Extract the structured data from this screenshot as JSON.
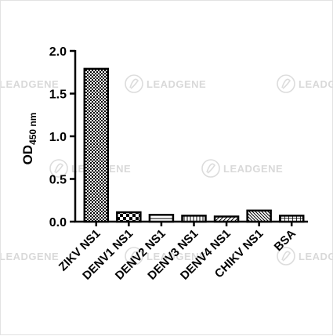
{
  "watermark": {
    "text": "LEADGENE"
  },
  "chart_data": {
    "type": "bar",
    "categories": [
      "ZIKV NS1",
      "DENV1 NS1",
      "DENV2 NS1",
      "DENV3 NS1",
      "DENV4 NS1",
      "CHIKV NS1",
      "BSA"
    ],
    "values": [
      1.79,
      0.11,
      0.08,
      0.07,
      0.06,
      0.13,
      0.07
    ],
    "ylabel": {
      "main": "OD",
      "sub": "450 nm"
    },
    "ylim": [
      0,
      2.0
    ],
    "yticks": [
      "0.0",
      "0.5",
      "1.0",
      "1.5",
      "2.0"
    ],
    "grid": false,
    "legend": "none",
    "patterns": [
      "checker",
      "checker-coarse",
      "horizontal",
      "vertical",
      "diagonal",
      "diagonal-dense",
      "grid"
    ],
    "colors": {
      "bar_stroke": "#000000",
      "axis": "#000000",
      "watermark": "#d9d9d9"
    }
  }
}
